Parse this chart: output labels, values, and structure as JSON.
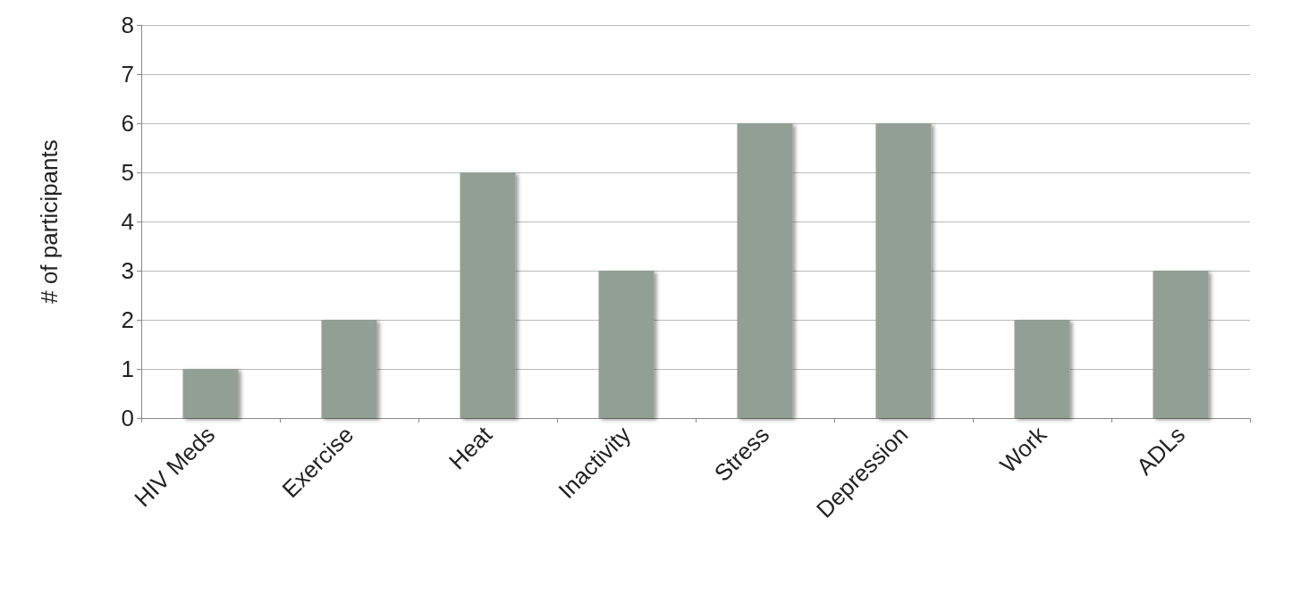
{
  "chart_data": {
    "type": "bar",
    "ylabel": "# of participants",
    "categories": [
      "HIV Meds",
      "Exercise",
      "Heat",
      "Inactivity",
      "Stress",
      "Depression",
      "Work",
      "ADLs"
    ],
    "values": [
      1,
      2,
      5,
      3,
      6,
      6,
      2,
      3
    ],
    "color": "#919f94",
    "ylim": [
      0,
      8
    ],
    "yticks": [
      0,
      1,
      2,
      3,
      4,
      5,
      6,
      7,
      8
    ],
    "grid": "y"
  }
}
